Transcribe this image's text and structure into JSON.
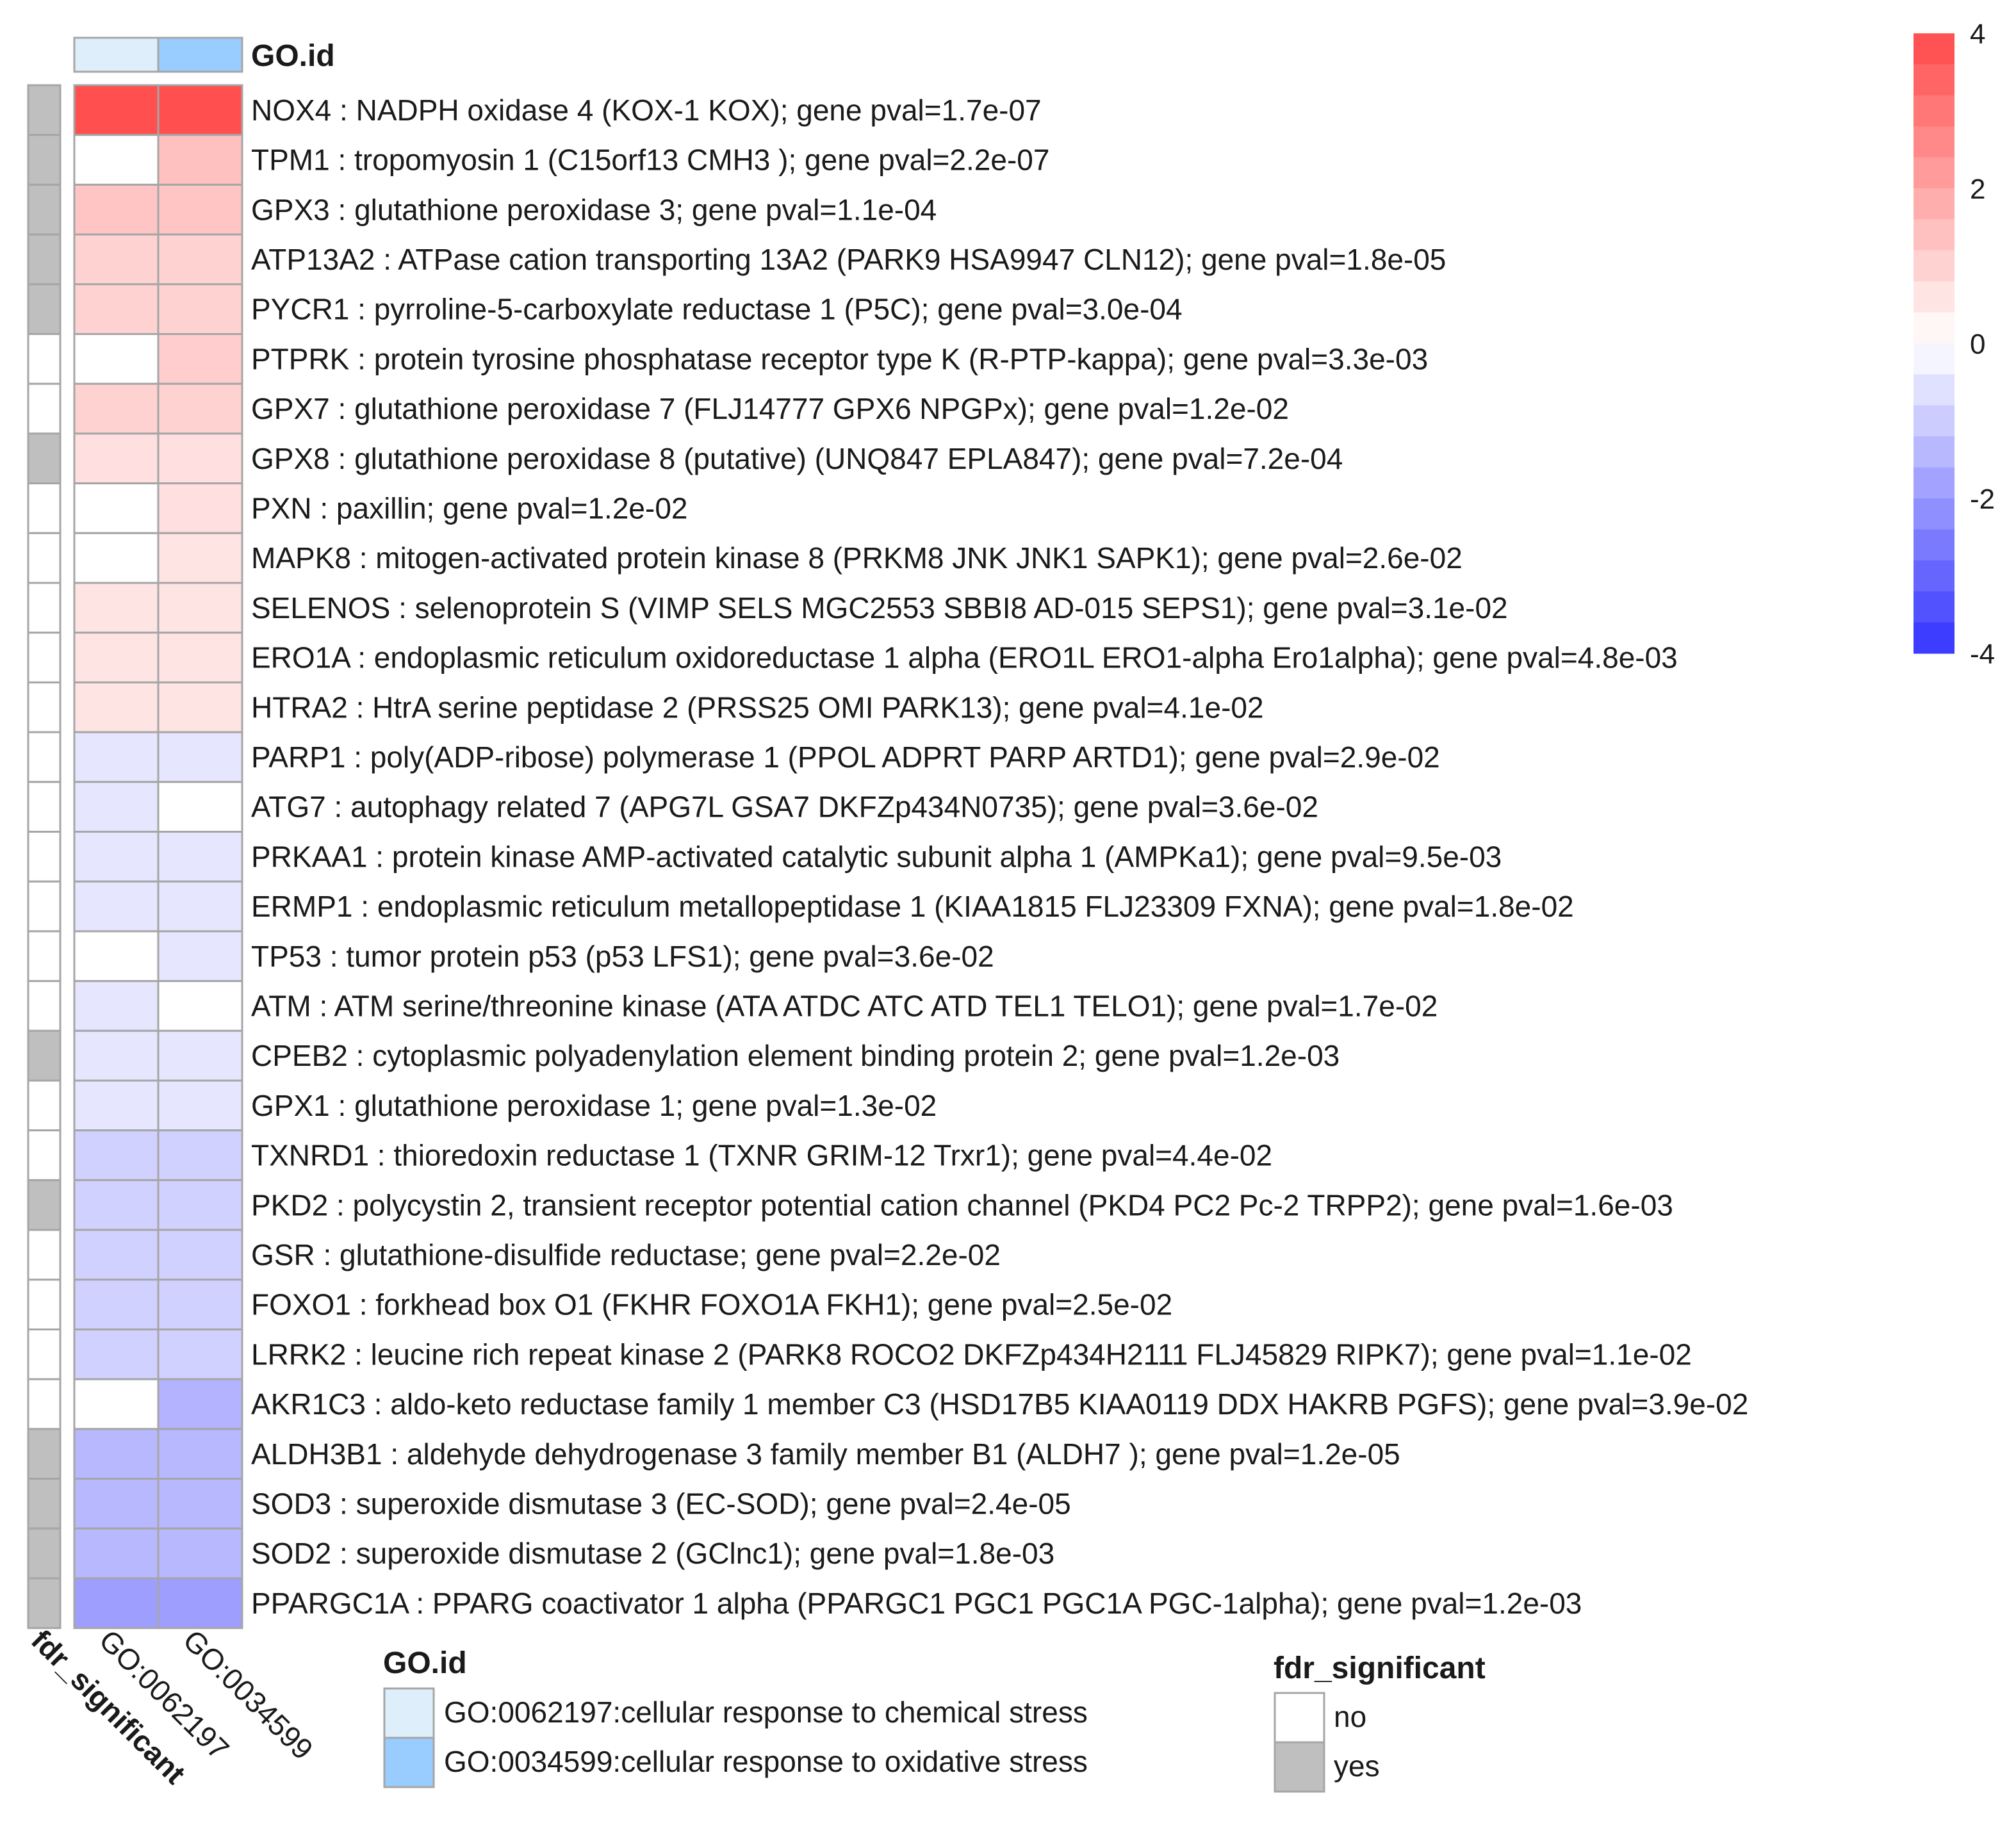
{
  "chart_data": {
    "type": "heatmap",
    "title": "",
    "annotation_header": "GO.id",
    "columns": [
      "GO:0062197",
      "GO:0034599"
    ],
    "column_colors": [
      "#deeffb",
      "#99ccff"
    ],
    "row_annotation_label": "fdr_significant",
    "rows": [
      {
        "label": "NOX4 : NADPH oxidase 4 (KOX-1 KOX); gene pval=1.7e-07",
        "values": [
          3.9,
          3.9
        ],
        "fdr": "yes"
      },
      {
        "label": "TPM1 : tropomyosin 1 (C15orf13 CMH3 ); gene pval=2.2e-07",
        "values": [
          0,
          1.4
        ],
        "fdr": "yes"
      },
      {
        "label": "GPX3 : glutathione peroxidase 3; gene pval=1.1e-04",
        "values": [
          1.3,
          1.3
        ],
        "fdr": "yes"
      },
      {
        "label": "ATP13A2 : ATPase cation transporting 13A2 (PARK9 HSA9947 CLN12); gene pval=1.8e-05",
        "values": [
          1.0,
          1.0
        ],
        "fdr": "yes"
      },
      {
        "label": "PYCR1 : pyrroline-5-carboxylate reductase 1 (P5C); gene pval=3.0e-04",
        "values": [
          1.0,
          1.0
        ],
        "fdr": "yes"
      },
      {
        "label": "PTPRK : protein tyrosine phosphatase receptor type K (R-PTP-kappa); gene pval=3.3e-03",
        "values": [
          0,
          1.1
        ],
        "fdr": "no"
      },
      {
        "label": "GPX7 : glutathione peroxidase 7 (FLJ14777 GPX6 NPGPx); gene pval=1.2e-02",
        "values": [
          1.0,
          1.0
        ],
        "fdr": "no"
      },
      {
        "label": "GPX8 : glutathione peroxidase 8 (putative) (UNQ847 EPLA847); gene pval=7.2e-04",
        "values": [
          0.7,
          0.7
        ],
        "fdr": "yes"
      },
      {
        "label": "PXN : paxillin; gene pval=1.2e-02",
        "values": [
          0,
          0.7
        ],
        "fdr": "no"
      },
      {
        "label": "MAPK8 : mitogen-activated protein kinase 8 (PRKM8 JNK JNK1 SAPK1); gene pval=2.6e-02",
        "values": [
          0,
          0.6
        ],
        "fdr": "no"
      },
      {
        "label": "SELENOS : selenoprotein S (VIMP SELS MGC2553 SBBI8 AD-015 SEPS1); gene pval=3.1e-02",
        "values": [
          0.6,
          0.6
        ],
        "fdr": "no"
      },
      {
        "label": "ERO1A : endoplasmic reticulum oxidoreductase 1 alpha (ERO1L ERO1-alpha Ero1alpha); gene pval=4.8e-03",
        "values": [
          0.6,
          0.6
        ],
        "fdr": "no"
      },
      {
        "label": "HTRA2 : HtrA serine peptidase 2 (PRSS25 OMI PARK13); gene pval=4.1e-02",
        "values": [
          0.6,
          0.6
        ],
        "fdr": "no"
      },
      {
        "label": "PARP1 : poly(ADP-ribose) polymerase 1 (PPOL ADPRT PARP ARTD1); gene pval=2.9e-02",
        "values": [
          -0.5,
          -0.5
        ],
        "fdr": "no"
      },
      {
        "label": "ATG7 : autophagy related 7 (APG7L GSA7 DKFZp434N0735); gene pval=3.6e-02",
        "values": [
          -0.5,
          0
        ],
        "fdr": "no"
      },
      {
        "label": "PRKAA1 : protein kinase AMP-activated catalytic subunit alpha 1 (AMPKa1); gene pval=9.5e-03",
        "values": [
          -0.5,
          -0.5
        ],
        "fdr": "no"
      },
      {
        "label": "ERMP1 : endoplasmic reticulum metallopeptidase 1 (KIAA1815 FLJ23309 FXNA); gene pval=1.8e-02",
        "values": [
          -0.5,
          -0.5
        ],
        "fdr": "no"
      },
      {
        "label": "TP53 : tumor protein p53 (p53 LFS1); gene pval=3.6e-02",
        "values": [
          0,
          -0.5
        ],
        "fdr": "no"
      },
      {
        "label": "ATM : ATM serine/threonine kinase (ATA ATDC ATC ATD TEL1 TELO1); gene pval=1.7e-02",
        "values": [
          -0.5,
          0
        ],
        "fdr": "no"
      },
      {
        "label": "CPEB2 : cytoplasmic polyadenylation element binding protein 2; gene pval=1.2e-03",
        "values": [
          -0.5,
          -0.5
        ],
        "fdr": "yes"
      },
      {
        "label": "GPX1 : glutathione peroxidase 1; gene pval=1.3e-02",
        "values": [
          -0.5,
          -0.5
        ],
        "fdr": "no"
      },
      {
        "label": "TXNRD1 : thioredoxin reductase 1 (TXNR GRIM-12 Trxr1); gene pval=4.4e-02",
        "values": [
          -0.9,
          -0.9
        ],
        "fdr": "no"
      },
      {
        "label": "PKD2 : polycystin 2, transient receptor potential cation channel (PKD4 PC2 Pc-2 TRPP2); gene pval=1.6e-03",
        "values": [
          -0.9,
          -0.9
        ],
        "fdr": "yes"
      },
      {
        "label": "GSR : glutathione-disulfide reductase; gene pval=2.2e-02",
        "values": [
          -0.9,
          -0.9
        ],
        "fdr": "no"
      },
      {
        "label": "FOXO1 : forkhead box O1 (FKHR FOXO1A FKH1); gene pval=2.5e-02",
        "values": [
          -0.9,
          -0.9
        ],
        "fdr": "no"
      },
      {
        "label": "LRRK2 : leucine rich repeat kinase 2 (PARK8 ROCO2 DKFZp434H2111 FLJ45829 RIPK7); gene pval=1.1e-02",
        "values": [
          -0.9,
          -0.9
        ],
        "fdr": "no"
      },
      {
        "label": "AKR1C3 : aldo-keto reductase family 1 member C3 (HSD17B5 KIAA0119 DDX HAKRB PGFS); gene pval=3.9e-02",
        "values": [
          0,
          -1.5
        ],
        "fdr": "no"
      },
      {
        "label": "ALDH3B1 : aldehyde dehydrogenase 3 family member B1 (ALDH7 ); gene pval=1.2e-05",
        "values": [
          -1.4,
          -1.4
        ],
        "fdr": "yes"
      },
      {
        "label": "SOD3 : superoxide dismutase 3 (EC-SOD); gene pval=2.4e-05",
        "values": [
          -1.4,
          -1.4
        ],
        "fdr": "yes"
      },
      {
        "label": "SOD2 : superoxide dismutase 2 (GClnc1); gene pval=1.8e-03",
        "values": [
          -1.4,
          -1.4
        ],
        "fdr": "yes"
      },
      {
        "label": "PPARGC1A : PPARG coactivator 1 alpha (PPARGC1 PGC1 PGC1A PGC-1alpha); gene pval=1.2e-03",
        "values": [
          -1.9,
          -1.9
        ],
        "fdr": "yes"
      }
    ],
    "color_scale": {
      "min": -4,
      "max": 4,
      "ticks": [
        4,
        2,
        0,
        -2,
        -4
      ],
      "tick_labels": [
        "4",
        "2",
        "0",
        "-2",
        "-4"
      ],
      "positive_color": "#ff4a4a",
      "negative_color": "#3333ff",
      "zero_color": "#ffffff"
    },
    "legends": {
      "go": {
        "title": "GO.id",
        "items": [
          {
            "label": "GO:0062197:cellular response to chemical stress",
            "color": "#deeffb"
          },
          {
            "label": "GO:0034599:cellular response to oxidative stress",
            "color": "#99ccff"
          }
        ]
      },
      "fdr": {
        "title": "fdr_significant",
        "items": [
          {
            "label": "no",
            "color": "#ffffff"
          },
          {
            "label": "yes",
            "color": "#bfbfbf"
          }
        ]
      }
    },
    "cell_border_color": "#a6a6a6"
  }
}
